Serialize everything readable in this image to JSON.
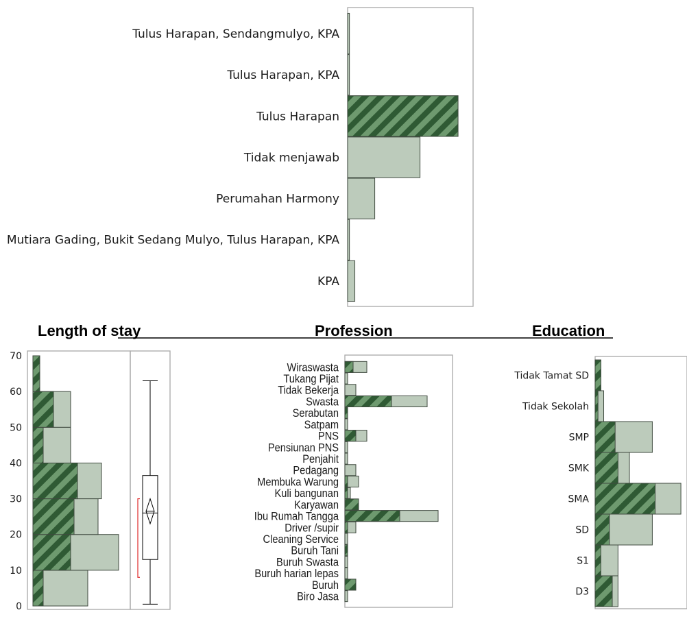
{
  "colors": {
    "bar_light": "#bccbbb",
    "bar_dark": "#2f5a34",
    "hatch_light": "#6e9a6f",
    "outline": "#3f4a3f",
    "frame": "#a8a8a8",
    "quantile_bracket": "#e02b2b"
  },
  "titles": {
    "length_of_stay": "Length of stay",
    "profession": "Profession",
    "education": "Education"
  },
  "chart_data": [
    {
      "type": "bar",
      "orientation": "horizontal",
      "categories": [
        "Tulus Harapan, Sendangmulyo, KPA",
        "Tulus Harapan, KPA",
        "Tulus Harapan",
        "Tidak menjawab",
        "Perumahan Harmony",
        "Mutiara Gading, Bukit Sedang Mulyo, Tulus Harapan, KPA",
        "KPA"
      ],
      "values": [
        1,
        1,
        61,
        40,
        15,
        1,
        4
      ],
      "selected": [
        0,
        0,
        61,
        0,
        0,
        0,
        0
      ]
    },
    {
      "type": "bar",
      "title": "Length of stay",
      "subtype": "histogram",
      "bins": [
        [
          0,
          10
        ],
        [
          10,
          20
        ],
        [
          20,
          30
        ],
        [
          30,
          40
        ],
        [
          40,
          50
        ],
        [
          50,
          60
        ],
        [
          60,
          70
        ]
      ],
      "values": [
        16,
        25,
        19,
        20,
        11,
        11,
        2
      ],
      "selected": [
        3,
        11,
        12,
        13,
        3,
        6,
        2
      ],
      "yticks": [
        0,
        10,
        20,
        30,
        40,
        50,
        60,
        70
      ],
      "ylim": [
        0,
        70
      ],
      "boxplot": {
        "min": 0.5,
        "q1": 13,
        "median": 26,
        "q3": 36.5,
        "max": 63,
        "mean": 26.5,
        "ci_low": 23,
        "ci_high": 30,
        "shortest_half_low": 8,
        "shortest_half_high": 30
      }
    },
    {
      "type": "bar",
      "title": "Profession",
      "orientation": "horizontal",
      "categories": [
        "Wiraswasta",
        "Tukang Pijat",
        "Tidak Bekerja",
        "Swasta",
        "Serabutan",
        "Satpam",
        "PNS",
        "Pensiunan PNS",
        "Penjahit",
        "Pedagang",
        "Membuka Warung",
        "Kuli bangunan",
        "Karyawan",
        "Ibu Rumah Tangga",
        "Driver /supir",
        "Cleaning Service",
        "Buruh Tani",
        "Buruh Swasta",
        "Buruh harian lepas",
        "Buruh",
        "Biro Jasa"
      ],
      "values": [
        8,
        1,
        4,
        30,
        1,
        1,
        8,
        1,
        1,
        4,
        5,
        2,
        5,
        34,
        4,
        1,
        1,
        1,
        1,
        4,
        1
      ],
      "selected": [
        3,
        0,
        0,
        17,
        1,
        0,
        4,
        0,
        0,
        0,
        1,
        1,
        5,
        20,
        1,
        0,
        1,
        0,
        0,
        4,
        0
      ]
    },
    {
      "type": "bar",
      "title": "Education",
      "orientation": "horizontal",
      "categories": [
        "Tidak Tamat SD",
        "Tidak Sekolah",
        "SMP",
        "SMK",
        "SMA",
        "SD",
        "S1",
        "D3"
      ],
      "values": [
        2,
        3,
        20,
        12,
        30,
        20,
        8,
        8
      ],
      "selected": [
        2,
        1,
        7,
        8,
        21,
        5,
        2,
        6
      ]
    }
  ]
}
